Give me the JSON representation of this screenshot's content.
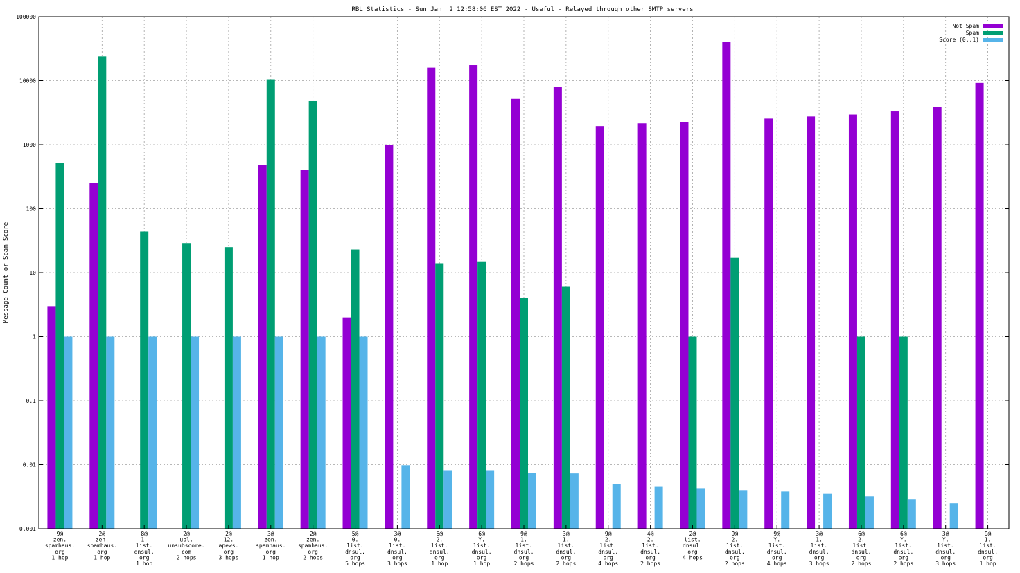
{
  "chart_data": {
    "type": "bar",
    "title": "RBL Statistics - Sun Jan  2 12:58:06 EST 2022 - Useful - Relayed through other SMTP servers",
    "ylabel": "Message Count or Spam Score",
    "xlabel": "",
    "yscale": "log",
    "ylim": [
      0.001,
      100000
    ],
    "y_ticks": [
      "0.001",
      "0.01",
      "0.1",
      "1",
      "10",
      "100",
      "1000",
      "10000",
      "100000"
    ],
    "grid": true,
    "legend_position": "top-right",
    "categories": [
      [
        "9@",
        "zen.",
        "spamhaus.",
        "org",
        "1 hop"
      ],
      [
        "2@",
        "zen.",
        "spamhaus.",
        "org",
        "1 hop"
      ],
      [
        "8@",
        "1.",
        "list.",
        "dnsul.",
        "org",
        "1 hop"
      ],
      [
        "2@",
        "ubl.",
        "unsubscore.",
        "com",
        "2 hops"
      ],
      [
        "2@",
        "12.",
        "apews.",
        "org",
        "3 hops"
      ],
      [
        "3@",
        "zen.",
        "spamhaus.",
        "org",
        "1 hop"
      ],
      [
        "2@",
        "zen.",
        "spamhaus.",
        "org",
        "2 hops"
      ],
      [
        "5@",
        "0.",
        "list.",
        "dnsul.",
        "org",
        "5 hops"
      ],
      [
        "3@",
        "0.",
        "list.",
        "dnsul.",
        "org",
        "3 hops"
      ],
      [
        "6@",
        "2.",
        "list.",
        "dnsul.",
        "org",
        "1 hop"
      ],
      [
        "6@",
        "Y.",
        "list.",
        "dnsul.",
        "org",
        "1 hop"
      ],
      [
        "9@",
        "1.",
        "list.",
        "dnsul.",
        "org",
        "2 hops"
      ],
      [
        "3@",
        "1.",
        "list.",
        "dnsul.",
        "org",
        "2 hops"
      ],
      [
        "9@",
        "2.",
        "list.",
        "dnsul.",
        "org",
        "4 hops"
      ],
      [
        "4@",
        "2.",
        "list.",
        "dnsul.",
        "org",
        "2 hops"
      ],
      [
        "2@",
        "list.",
        "dnsul.",
        "org",
        "4 hops"
      ],
      [
        "9@",
        "2.",
        "list.",
        "dnsul.",
        "org",
        "2 hops"
      ],
      [
        "9@",
        "Y.",
        "list.",
        "dnsul.",
        "org",
        "4 hops"
      ],
      [
        "3@",
        "1.",
        "list.",
        "dnsul.",
        "org",
        "3 hops"
      ],
      [
        "6@",
        "2.",
        "list.",
        "dnsul.",
        "org",
        "2 hops"
      ],
      [
        "6@",
        "Y.",
        "list.",
        "dnsul.",
        "org",
        "2 hops"
      ],
      [
        "3@",
        "Y.",
        "list.",
        "dnsul.",
        "org",
        "3 hops"
      ],
      [
        "9@",
        "1.",
        "list.",
        "dnsul.",
        "org",
        "1 hop"
      ]
    ],
    "series": [
      {
        "name": "Not Spam",
        "color": "#9400d3",
        "values": [
          3,
          250,
          null,
          null,
          null,
          480,
          400,
          2,
          1000,
          16000,
          17500,
          5200,
          8000,
          1950,
          2150,
          2250,
          40000,
          2550,
          2750,
          2950,
          3300,
          3900,
          9200
        ]
      },
      {
        "name": "Spam",
        "color": "#009e73",
        "values": [
          520,
          24000,
          44,
          29,
          25,
          10500,
          4800,
          23,
          null,
          14,
          15,
          4,
          6,
          null,
          null,
          1,
          17,
          null,
          null,
          1,
          1,
          null,
          null
        ]
      },
      {
        "name": "Score (0..1)",
        "color": "#56b4e9",
        "values": [
          1,
          1,
          1,
          1,
          1,
          1,
          1,
          1,
          0.0098,
          0.0082,
          0.0082,
          0.0075,
          0.0073,
          0.005,
          0.0045,
          0.0043,
          0.004,
          0.0038,
          0.0035,
          0.0032,
          0.0029,
          0.0025,
          null
        ]
      }
    ]
  }
}
